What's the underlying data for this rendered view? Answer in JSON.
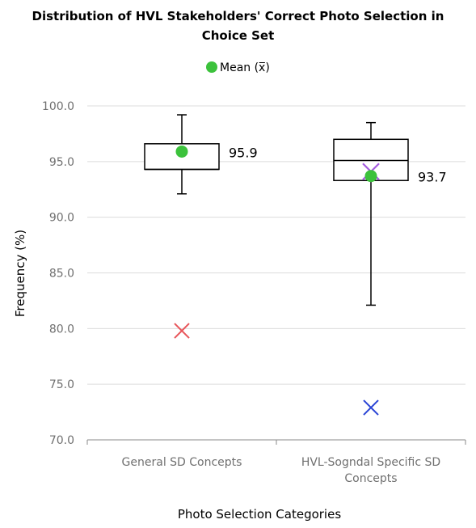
{
  "chart_data": {
    "type": "box",
    "title_lines": [
      "Distribution of HVL Stakeholders' Correct Photo Selection in",
      "Choice Set"
    ],
    "xlabel": "Photo Selection Categories",
    "ylabel": "Frequency (%)",
    "ylim": [
      70,
      100
    ],
    "yticks": [
      "70.0",
      "75.0",
      "80.0",
      "85.0",
      "90.0",
      "95.0",
      "100.0"
    ],
    "grid": true,
    "legend": {
      "position": "top",
      "label": "Mean (x̅)"
    },
    "colors": {
      "mean": "#3cc23c",
      "outlier_general": "#e8555a",
      "outlier_specific": "#2b45d6",
      "overlay_mark": "#a45ae0"
    },
    "categories": [
      {
        "name_lines": [
          "General SD Concepts"
        ],
        "whisker_low": 92.1,
        "q1": 94.3,
        "median": 94.3,
        "q3": 96.6,
        "whisker_high": 99.2,
        "mean": 95.9,
        "mean_label": "95.9",
        "outliers": [
          79.8
        ]
      },
      {
        "name_lines": [
          "HVL-Sogndal Specific SD",
          "Concepts"
        ],
        "whisker_low": 82.1,
        "q1": 93.3,
        "median": 95.1,
        "q3": 97.0,
        "whisker_high": 98.5,
        "mean": 93.7,
        "mean_label": "93.7",
        "outliers": [
          72.9
        ],
        "marks": [
          94.1
        ]
      }
    ]
  }
}
